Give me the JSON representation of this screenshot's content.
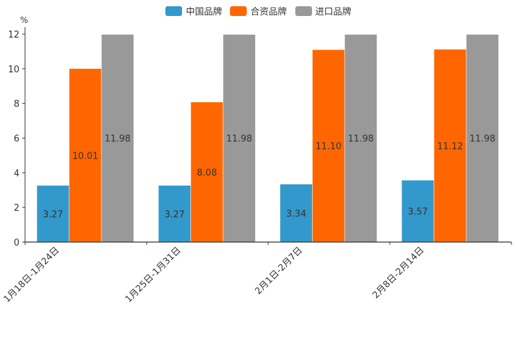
{
  "chart_data": {
    "type": "bar",
    "title": "",
    "unit": "%",
    "xlabel": "",
    "ylabel": "%",
    "ylim": [
      0,
      12
    ],
    "yticks": [
      0,
      2,
      4,
      6,
      8,
      10,
      12
    ],
    "categories": [
      "1月18日-1月24日",
      "1月25日-1月31日",
      "2月1日-2月7日",
      "2月8日-2月14日"
    ],
    "series": [
      {
        "name": "中国品牌",
        "color": "#3399cc",
        "values": [
          3.27,
          3.27,
          3.34,
          3.57
        ]
      },
      {
        "name": "合资品牌",
        "color": "#ff6600",
        "values": [
          10.01,
          8.08,
          11.1,
          11.12
        ]
      },
      {
        "name": "进口品牌",
        "color": "#999999",
        "values": [
          11.98,
          11.98,
          11.98,
          11.98
        ]
      }
    ],
    "value_labels": [
      [
        "3.27",
        "3.27",
        "3.34",
        "3.57"
      ],
      [
        "10.01",
        "8.08",
        "11.10",
        "11.12"
      ],
      [
        "11.98",
        "11.98",
        "11.98",
        "11.98"
      ]
    ],
    "legend_position": "top-center",
    "grid": false
  }
}
